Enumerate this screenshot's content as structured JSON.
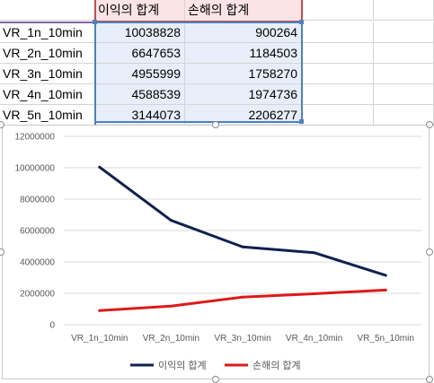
{
  "sheet": {
    "header_profit": "이익의 합계",
    "header_loss": "손해의 합계",
    "rows": [
      {
        "label": "VR_1n_10min",
        "profit": "10038828",
        "loss": "900264"
      },
      {
        "label": "VR_2n_10min",
        "profit": "6647653",
        "loss": "1184503"
      },
      {
        "label": "VR_3n_10min",
        "profit": "4955999",
        "loss": "1758270"
      },
      {
        "label": "VR_4n_10min",
        "profit": "4588539",
        "loss": "1974736"
      },
      {
        "label": "VR_5n_10min",
        "profit": "3144073",
        "loss": "2206277"
      }
    ]
  },
  "colors": {
    "profit_line": "#0e2150",
    "loss_line": "#dd1a1a",
    "header_fill": "#fbe4e6",
    "value_fill": "#e8eef9"
  },
  "chart_data": {
    "type": "line",
    "categories": [
      "VR_1n_10min",
      "VR_2n_10min",
      "VR_3n_10min",
      "VR_4n_10min",
      "VR_5n_10min"
    ],
    "series": [
      {
        "name": "이익의 합계",
        "values": [
          10038828,
          6647653,
          4955999,
          4588539,
          3144073
        ]
      },
      {
        "name": "손해의 합계",
        "values": [
          900264,
          1184503,
          1758270,
          1974736,
          2206277
        ]
      }
    ],
    "y_ticks": [
      "0",
      "2000000",
      "4000000",
      "6000000",
      "8000000",
      "10000000",
      "12000000"
    ],
    "ylim": [
      0,
      12000000
    ],
    "grid": true,
    "legend_position": "bottom"
  }
}
